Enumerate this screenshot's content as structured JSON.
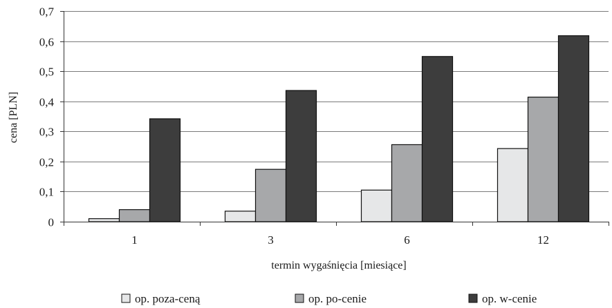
{
  "chart_data": {
    "type": "bar",
    "title": "",
    "xlabel": "termin wygaśnięcia [miesiące]",
    "ylabel": "cena [PLN]",
    "categories": [
      "1",
      "3",
      "6",
      "12"
    ],
    "series": [
      {
        "name": "op. poza-ceną",
        "color": "#e6e7e8",
        "values": [
          0.01,
          0.035,
          0.105,
          0.243
        ]
      },
      {
        "name": "op. po-cenie",
        "color": "#a7a8aa",
        "values": [
          0.04,
          0.174,
          0.256,
          0.414
        ]
      },
      {
        "name": "op. w-cenie",
        "color": "#3d3d3d",
        "values": [
          0.342,
          0.436,
          0.549,
          0.618
        ]
      }
    ],
    "ylim": [
      0,
      0.7
    ],
    "yticks": [
      0,
      0.1,
      0.2,
      0.3,
      0.4,
      0.5,
      0.6,
      0.7
    ],
    "ytick_labels": [
      "0",
      "0,1",
      "0,2",
      "0,3",
      "0,4",
      "0,5",
      "0,6",
      "0,7"
    ],
    "grid": true,
    "legend_position": "bottom"
  }
}
